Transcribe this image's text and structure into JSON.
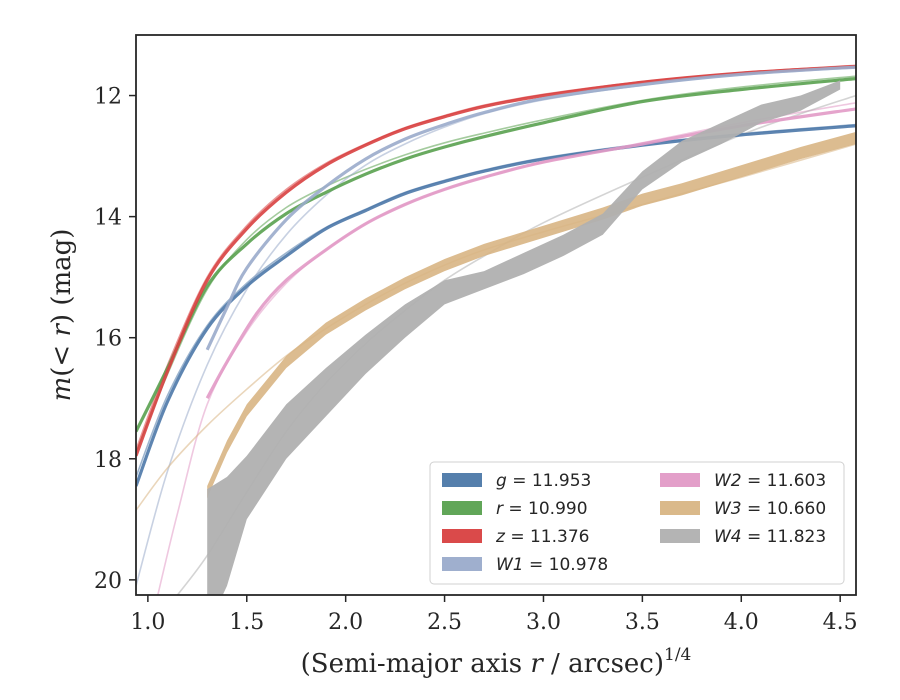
{
  "chart_data": {
    "type": "line",
    "xlabel": "(Semi-major axis r / arcsec)",
    "xlabel_math_var": "r",
    "xlabel_prefix": "(Semi-major axis ",
    "xlabel_suffix": " / arcsec)",
    "xlabel_superscript": "1/4",
    "ylabel_prefix": "m(< ",
    "ylabel_var": "r",
    "ylabel_suffix": ") (mag)",
    "xlim": [
      0.94,
      4.58
    ],
    "ylim": [
      20.25,
      11.0
    ],
    "y_inverted": true,
    "grid": false,
    "legend_position": "lower-right",
    "x_ticks": [
      1.0,
      1.5,
      2.0,
      2.5,
      3.0,
      3.5,
      4.0,
      4.5
    ],
    "x_tick_labels": [
      "1.0",
      "1.5",
      "2.0",
      "2.5",
      "3.0",
      "3.5",
      "4.0",
      "4.5"
    ],
    "y_ticks": [
      12,
      14,
      16,
      18,
      20
    ],
    "y_tick_labels": [
      "12",
      "14",
      "16",
      "18",
      "20"
    ],
    "series": [
      {
        "name": "g = 11.953",
        "band": "g",
        "value": "11.953",
        "color": "#4c78a8",
        "x": [
          0.94,
          1.1,
          1.3,
          1.5,
          1.7,
          1.9,
          2.1,
          2.3,
          2.5,
          2.7,
          3.0,
          3.5,
          4.0,
          4.58
        ],
        "y": [
          18.45,
          17.05,
          15.85,
          15.15,
          14.65,
          14.2,
          13.9,
          13.62,
          13.42,
          13.25,
          13.05,
          12.82,
          12.65,
          12.5
        ],
        "model_y": [
          18.3,
          16.95,
          15.8,
          15.1,
          14.6,
          14.18,
          13.88,
          13.6,
          13.4,
          13.23,
          13.03,
          12.8,
          12.63,
          12.48
        ]
      },
      {
        "name": "r = 10.990",
        "band": "r",
        "value": "10.990",
        "color": "#59a14f",
        "x": [
          0.94,
          1.1,
          1.3,
          1.5,
          1.7,
          1.9,
          2.1,
          2.3,
          2.5,
          2.7,
          3.0,
          3.5,
          4.0,
          4.58
        ],
        "y": [
          17.55,
          16.5,
          15.15,
          14.45,
          13.95,
          13.6,
          13.3,
          13.05,
          12.85,
          12.68,
          12.45,
          12.1,
          11.9,
          11.72
        ],
        "model_y": [
          17.9,
          16.6,
          15.2,
          14.38,
          13.85,
          13.5,
          13.22,
          12.98,
          12.78,
          12.62,
          12.4,
          12.08,
          11.86,
          11.68
        ]
      },
      {
        "name": "z = 11.376",
        "band": "z",
        "value": "11.376",
        "color": "#d84040",
        "x": [
          0.94,
          1.1,
          1.3,
          1.5,
          1.7,
          1.9,
          2.1,
          2.3,
          2.5,
          2.7,
          3.0,
          3.5,
          4.0,
          4.58
        ],
        "y": [
          17.95,
          16.55,
          15.05,
          14.2,
          13.6,
          13.15,
          12.82,
          12.55,
          12.35,
          12.18,
          12.0,
          11.78,
          11.63,
          11.52
        ],
        "model_y": [
          17.85,
          16.45,
          15.0,
          14.15,
          13.55,
          13.12,
          12.8,
          12.53,
          12.33,
          12.16,
          11.98,
          11.77,
          11.62,
          11.5
        ]
      },
      {
        "name": "W1 = 10.978",
        "band": "W1",
        "value": "10.978",
        "color": "#9aabcb",
        "x": [
          1.3,
          1.4,
          1.5,
          1.7,
          1.9,
          2.1,
          2.3,
          2.5,
          2.7,
          3.0,
          3.5,
          4.0,
          4.58
        ],
        "y": [
          16.2,
          15.5,
          14.85,
          14.05,
          13.5,
          13.05,
          12.72,
          12.48,
          12.28,
          12.05,
          11.82,
          11.65,
          11.53
        ],
        "model_x": [
          0.94,
          1.1,
          1.3,
          1.5,
          1.7,
          1.9,
          2.1,
          2.3,
          2.5,
          2.7,
          3.0,
          3.5,
          4.0,
          4.58
        ],
        "model_y": [
          20.1,
          18.2,
          16.45,
          15.2,
          14.3,
          13.65,
          13.15,
          12.8,
          12.52,
          12.3,
          12.07,
          11.83,
          11.66,
          11.54
        ]
      },
      {
        "name": "W2 = 11.603",
        "band": "W2",
        "value": "11.603",
        "color": "#e29ac6",
        "x": [
          1.3,
          1.4,
          1.55,
          1.7,
          1.9,
          2.1,
          2.3,
          2.5,
          2.7,
          3.0,
          3.5,
          4.0,
          4.58
        ],
        "y": [
          17.0,
          16.4,
          15.6,
          15.05,
          14.55,
          14.12,
          13.8,
          13.55,
          13.35,
          13.1,
          12.8,
          12.5,
          12.22
        ],
        "model_x": [
          1.05,
          1.15,
          1.3,
          1.5,
          1.7,
          1.9,
          2.1,
          2.3,
          2.5,
          2.7,
          3.0,
          3.5,
          4.0,
          4.58
        ],
        "model_y": [
          20.25,
          18.9,
          17.1,
          15.9,
          15.1,
          14.55,
          14.12,
          13.8,
          13.55,
          13.35,
          13.1,
          12.78,
          12.45,
          12.12
        ]
      },
      {
        "name": "W3 = 10.660",
        "band": "W3",
        "value": "10.660",
        "color": "#d8b584",
        "x": [
          1.3,
          1.4,
          1.5,
          1.7,
          1.9,
          2.1,
          2.3,
          2.5,
          2.7,
          2.9,
          3.1,
          3.3,
          3.5,
          3.7,
          3.9,
          4.1,
          4.3,
          4.58
        ],
        "y": [
          18.55,
          17.8,
          17.2,
          16.4,
          15.85,
          15.45,
          15.1,
          14.8,
          14.55,
          14.35,
          14.15,
          13.95,
          13.72,
          13.55,
          13.35,
          13.15,
          12.95,
          12.7
        ],
        "band_width": 0.1,
        "model_x": [
          0.94,
          1.1,
          1.3,
          1.5,
          1.7,
          1.9,
          2.1,
          2.3,
          2.5,
          2.7,
          3.0,
          3.5,
          4.0,
          4.58
        ],
        "model_y": [
          18.85,
          18.15,
          17.45,
          16.85,
          16.3,
          15.85,
          15.45,
          15.1,
          14.8,
          14.55,
          14.25,
          13.8,
          13.35,
          12.8
        ]
      },
      {
        "name": "W4 = 11.823",
        "band": "W4",
        "value": "11.823",
        "color": "#b0b0b0",
        "x": [
          1.3,
          1.4,
          1.5,
          1.7,
          1.9,
          2.1,
          2.3,
          2.5,
          2.7,
          2.9,
          3.1,
          3.3,
          3.5,
          3.7,
          3.9,
          4.1,
          4.3,
          4.5
        ],
        "y": [
          20.8,
          20.1,
          19.0,
          18.0,
          17.3,
          16.6,
          16.0,
          15.45,
          15.2,
          14.95,
          14.65,
          14.3,
          13.55,
          13.1,
          12.8,
          12.45,
          12.25,
          11.9
        ],
        "y_upper": [
          18.5,
          18.3,
          17.95,
          17.1,
          16.5,
          15.95,
          15.45,
          15.05,
          14.9,
          14.6,
          14.3,
          13.95,
          13.25,
          12.75,
          12.45,
          12.15,
          12.0,
          11.75
        ],
        "model_x": [
          1.15,
          1.3,
          1.5,
          1.7,
          1.9,
          2.1,
          2.3,
          2.5,
          2.7,
          3.0,
          3.5,
          4.0,
          4.3,
          4.58
        ],
        "model_y": [
          20.25,
          19.6,
          18.55,
          17.55,
          16.75,
          16.1,
          15.55,
          15.05,
          14.65,
          14.1,
          13.35,
          12.65,
          12.3,
          12.0
        ]
      }
    ]
  }
}
